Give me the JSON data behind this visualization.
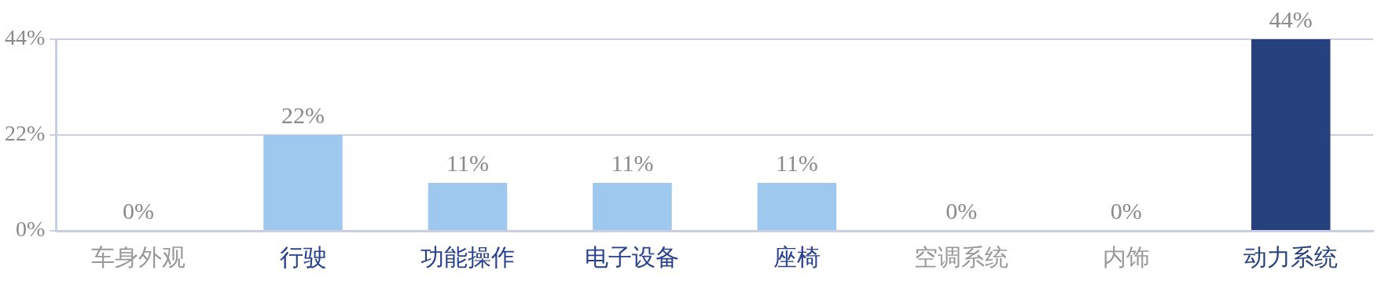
{
  "chart_data": {
    "type": "bar",
    "categories": [
      "车身外观",
      "行驶",
      "功能操作",
      "电子设备",
      "座椅",
      "空调系统",
      "内饰",
      "动力系统"
    ],
    "values": [
      0,
      22,
      11,
      11,
      11,
      0,
      0,
      44
    ],
    "colors": [
      "#9fc8ee",
      "#9fc8ee",
      "#9fc8ee",
      "#9fc8ee",
      "#9fc8ee",
      "#9fc8ee",
      "#9fc8ee",
      "#27417f"
    ],
    "value_labels": [
      "0%",
      "22%",
      "11%",
      "11%",
      "11%",
      "0%",
      "0%",
      "44%"
    ],
    "ylim": [
      0,
      44
    ],
    "yticks": [
      {
        "value": 0,
        "label": "0%"
      },
      {
        "value": 22,
        "label": "22%"
      },
      {
        "value": 44,
        "label": "44%"
      }
    ],
    "grid": "y",
    "legend": false
  }
}
